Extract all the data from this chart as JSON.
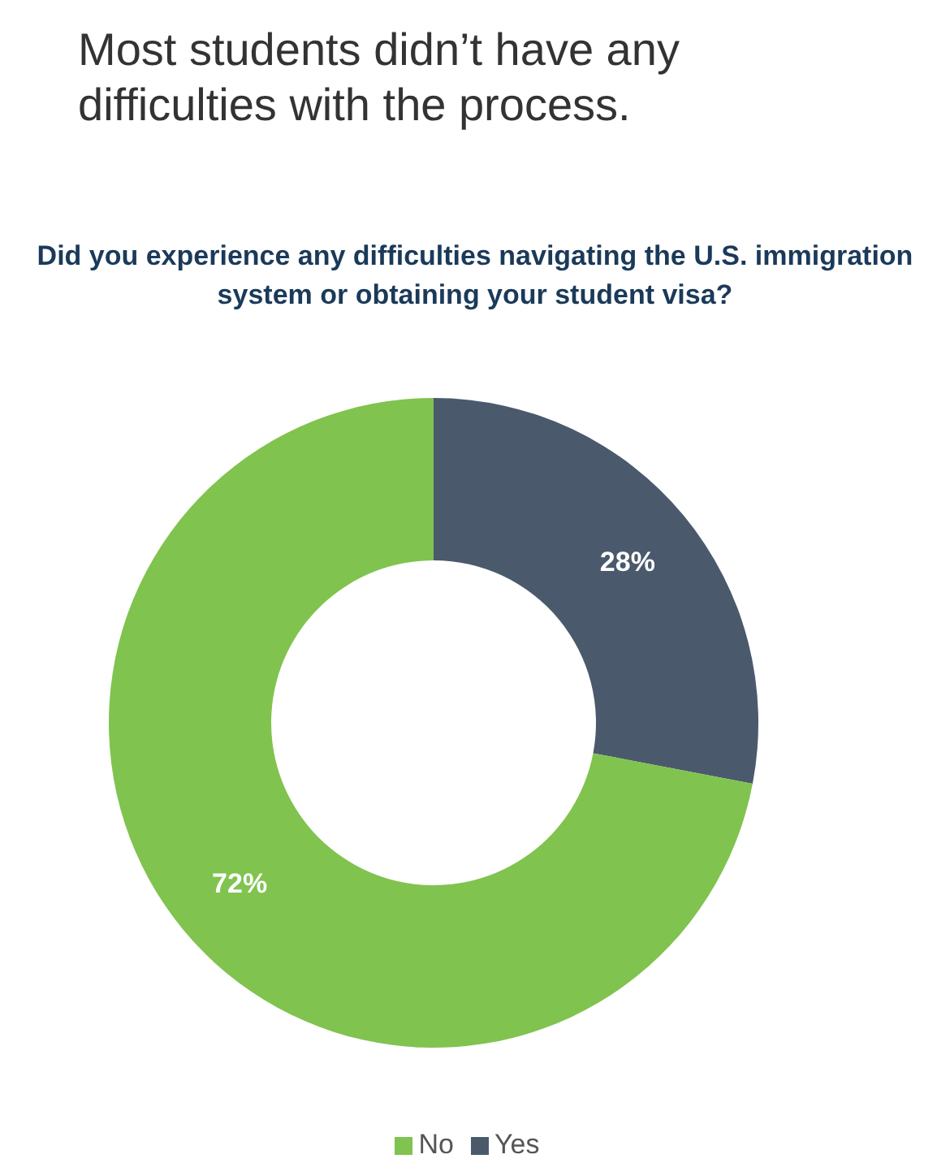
{
  "chart_data": {
    "type": "donut",
    "title": "Most students didn’t have any difficulties with the process.",
    "subtitle": "Did you experience any difficulties navigating the U.S. immigration system or obtaining your student visa?",
    "categories": [
      "Yes",
      "No"
    ],
    "values": [
      28,
      72
    ],
    "colors": [
      "#4a5a6c",
      "#80c34f"
    ],
    "value_labels": [
      "28%",
      "72%"
    ],
    "legend": "bottom"
  }
}
